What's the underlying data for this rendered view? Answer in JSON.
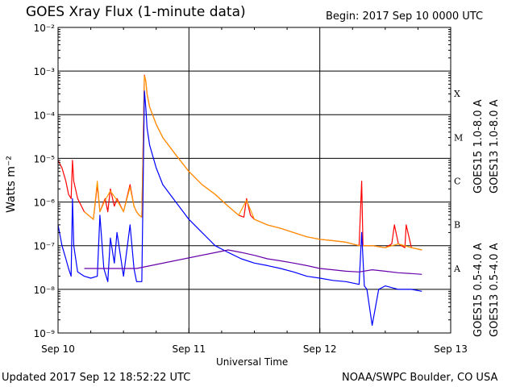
{
  "header": {
    "title": "GOES Xray Flux (1-minute data)",
    "begin": "Begin:  2017 Sep 10 0000 UTC"
  },
  "footer": {
    "updated": "Updated 2017 Sep 12 18:52:22 UTC",
    "credit": "NOAA/SWPC Boulder, CO USA"
  },
  "chart_data": {
    "type": "line",
    "title": "GOES Xray Flux (1-minute data)",
    "xlabel": "Universal Time",
    "ylabel": "Watts m⁻²",
    "yscale": "log",
    "ylim": [
      1e-09,
      0.01
    ],
    "xlim_days": [
      0,
      3
    ],
    "grid": true,
    "x_ticks": [
      "Sep 10",
      "Sep 11",
      "Sep 12",
      "Sep 13"
    ],
    "y_ticks": [
      "10⁻⁹",
      "10⁻⁸",
      "10⁻⁷",
      "10⁻⁶",
      "10⁻⁵",
      "10⁻⁴",
      "10⁻³",
      "10⁻²"
    ],
    "y_tick_exp": [
      -9,
      -8,
      -7,
      -6,
      -5,
      -4,
      -3,
      -2
    ],
    "flare_classes": [
      {
        "label": "X",
        "exp": -3.5
      },
      {
        "label": "M",
        "exp": -4.5
      },
      {
        "label": "C",
        "exp": -5.5
      },
      {
        "label": "B",
        "exp": -6.5
      },
      {
        "label": "A",
        "exp": -7.5
      }
    ],
    "legend_placement": "right-vertical",
    "colors": {
      "goes15_long": "#ff0000",
      "goes13_long": "#ff9900",
      "goes15_short": "#0000ff",
      "goes13_short": "#6600aa"
    },
    "series": [
      {
        "name": "GOES15 1.0-8.0 A",
        "color": "#ff0000",
        "x": [
          0.0,
          0.03,
          0.06,
          0.08,
          0.1,
          0.11,
          0.12,
          0.15,
          0.2,
          0.27,
          0.3,
          0.32,
          0.36,
          0.38,
          0.4,
          0.43,
          0.45,
          0.5,
          0.55,
          0.58,
          0.6,
          0.62,
          0.64,
          0.66,
          0.67,
          0.68,
          0.7,
          0.75,
          0.8,
          0.9,
          1.0,
          1.1,
          1.2,
          1.3,
          1.38,
          1.42,
          1.44,
          1.47,
          1.5,
          1.6,
          1.7,
          1.8,
          1.9,
          2.0,
          2.1,
          2.2,
          2.3,
          2.32,
          2.33,
          2.35,
          2.4,
          2.5,
          2.55,
          2.57,
          2.6,
          2.65,
          2.66,
          2.7,
          2.78
        ],
        "y": [
          9e-06,
          6e-06,
          3e-06,
          1.5e-06,
          1.2e-06,
          9e-06,
          3e-06,
          1.2e-06,
          6e-07,
          4e-07,
          2.5e-06,
          6e-07,
          1.2e-06,
          6e-07,
          2e-06,
          8e-07,
          1.2e-06,
          6e-07,
          2.5e-06,
          8e-07,
          6e-07,
          5e-07,
          4.5e-07,
          0.00081,
          0.0006,
          0.0003,
          0.00015,
          6e-05,
          3e-05,
          1.2e-05,
          5e-06,
          2.5e-06,
          1.5e-06,
          8e-07,
          5e-07,
          4.5e-07,
          1.2e-06,
          5e-07,
          4e-07,
          3e-07,
          2.5e-07,
          2e-07,
          1.6e-07,
          1.4e-07,
          1.3e-07,
          1.2e-07,
          1e-07,
          3e-06,
          1e-07,
          1e-07,
          1e-07,
          9e-08,
          1.1e-07,
          3e-07,
          1.1e-07,
          9e-08,
          3e-07,
          9e-08,
          8e-08
        ]
      },
      {
        "name": "GOES13 1.0-8.0 A",
        "color": "#ff9900",
        "x": [
          0.2,
          0.27,
          0.3,
          0.32,
          0.36,
          0.4,
          0.45,
          0.5,
          0.55,
          0.58,
          0.6,
          0.62,
          0.64,
          0.66,
          0.67,
          0.68,
          0.7,
          0.75,
          0.8,
          0.9,
          1.0,
          1.1,
          1.2,
          1.3,
          1.38,
          1.44,
          1.5,
          1.6,
          1.7,
          1.8,
          1.9,
          2.0,
          2.1,
          2.2,
          2.3,
          2.4,
          2.5,
          2.6,
          2.7,
          2.78
        ],
        "y": [
          6e-07,
          4e-07,
          3e-06,
          6e-07,
          1.1e-06,
          1.8e-06,
          1.1e-06,
          6e-07,
          2.2e-06,
          8e-07,
          6e-07,
          5e-07,
          4.5e-07,
          0.00078,
          0.0006,
          0.0003,
          0.00015,
          6e-05,
          3e-05,
          1.2e-05,
          5e-06,
          2.5e-06,
          1.5e-06,
          8e-07,
          5e-07,
          1.1e-06,
          4e-07,
          3e-07,
          2.5e-07,
          2e-07,
          1.6e-07,
          1.4e-07,
          1.3e-07,
          1.2e-07,
          1e-07,
          1e-07,
          9e-08,
          1.1e-07,
          9e-08,
          8e-08
        ]
      },
      {
        "name": "GOES15 0.5-4.0 A",
        "color": "#0000ff",
        "x": [
          0.0,
          0.03,
          0.06,
          0.08,
          0.1,
          0.11,
          0.12,
          0.15,
          0.2,
          0.25,
          0.3,
          0.32,
          0.35,
          0.38,
          0.4,
          0.43,
          0.45,
          0.5,
          0.55,
          0.58,
          0.6,
          0.62,
          0.64,
          0.66,
          0.67,
          0.68,
          0.7,
          0.75,
          0.8,
          0.9,
          1.0,
          1.1,
          1.2,
          1.3,
          1.4,
          1.5,
          1.6,
          1.7,
          1.8,
          1.9,
          2.0,
          2.1,
          2.2,
          2.3,
          2.32,
          2.34,
          2.36,
          2.4,
          2.45,
          2.5,
          2.6,
          2.7,
          2.78
        ],
        "y": [
          3e-07,
          1e-07,
          5e-08,
          3e-08,
          2e-08,
          1.2e-06,
          1e-07,
          2.5e-08,
          2e-08,
          1.8e-08,
          2e-08,
          5e-07,
          3e-08,
          1.5e-08,
          1.5e-07,
          4e-08,
          2e-07,
          2e-08,
          3e-07,
          3e-08,
          1.5e-08,
          1.5e-08,
          1.5e-08,
          0.00035,
          0.00015,
          5e-05,
          2e-05,
          6e-06,
          2.5e-06,
          1e-06,
          4e-07,
          2e-07,
          1e-07,
          7e-08,
          5e-08,
          4e-08,
          3.5e-08,
          3e-08,
          2.5e-08,
          2e-08,
          1.8e-08,
          1.6e-08,
          1.5e-08,
          1.3e-08,
          2e-07,
          1.2e-08,
          1e-08,
          1.5e-09,
          1e-08,
          1.2e-08,
          1e-08,
          1e-08,
          9e-09
        ]
      },
      {
        "name": "GOES13 0.5-4.0 A",
        "color": "#6600aa",
        "x": [
          0.2,
          0.3,
          0.4,
          0.5,
          0.6,
          1.3,
          1.4,
          1.5,
          1.6,
          1.7,
          1.8,
          1.9,
          2.0,
          2.1,
          2.2,
          2.3,
          2.4,
          2.5,
          2.6,
          2.7,
          2.78
        ],
        "y": [
          3e-08,
          3e-08,
          3e-08,
          3e-08,
          3e-08,
          8e-08,
          7e-08,
          6e-08,
          5e-08,
          4.5e-08,
          4e-08,
          3.5e-08,
          3e-08,
          2.8e-08,
          2.6e-08,
          2.5e-08,
          2.8e-08,
          2.6e-08,
          2.4e-08,
          2.3e-08,
          2.2e-08
        ]
      }
    ]
  }
}
